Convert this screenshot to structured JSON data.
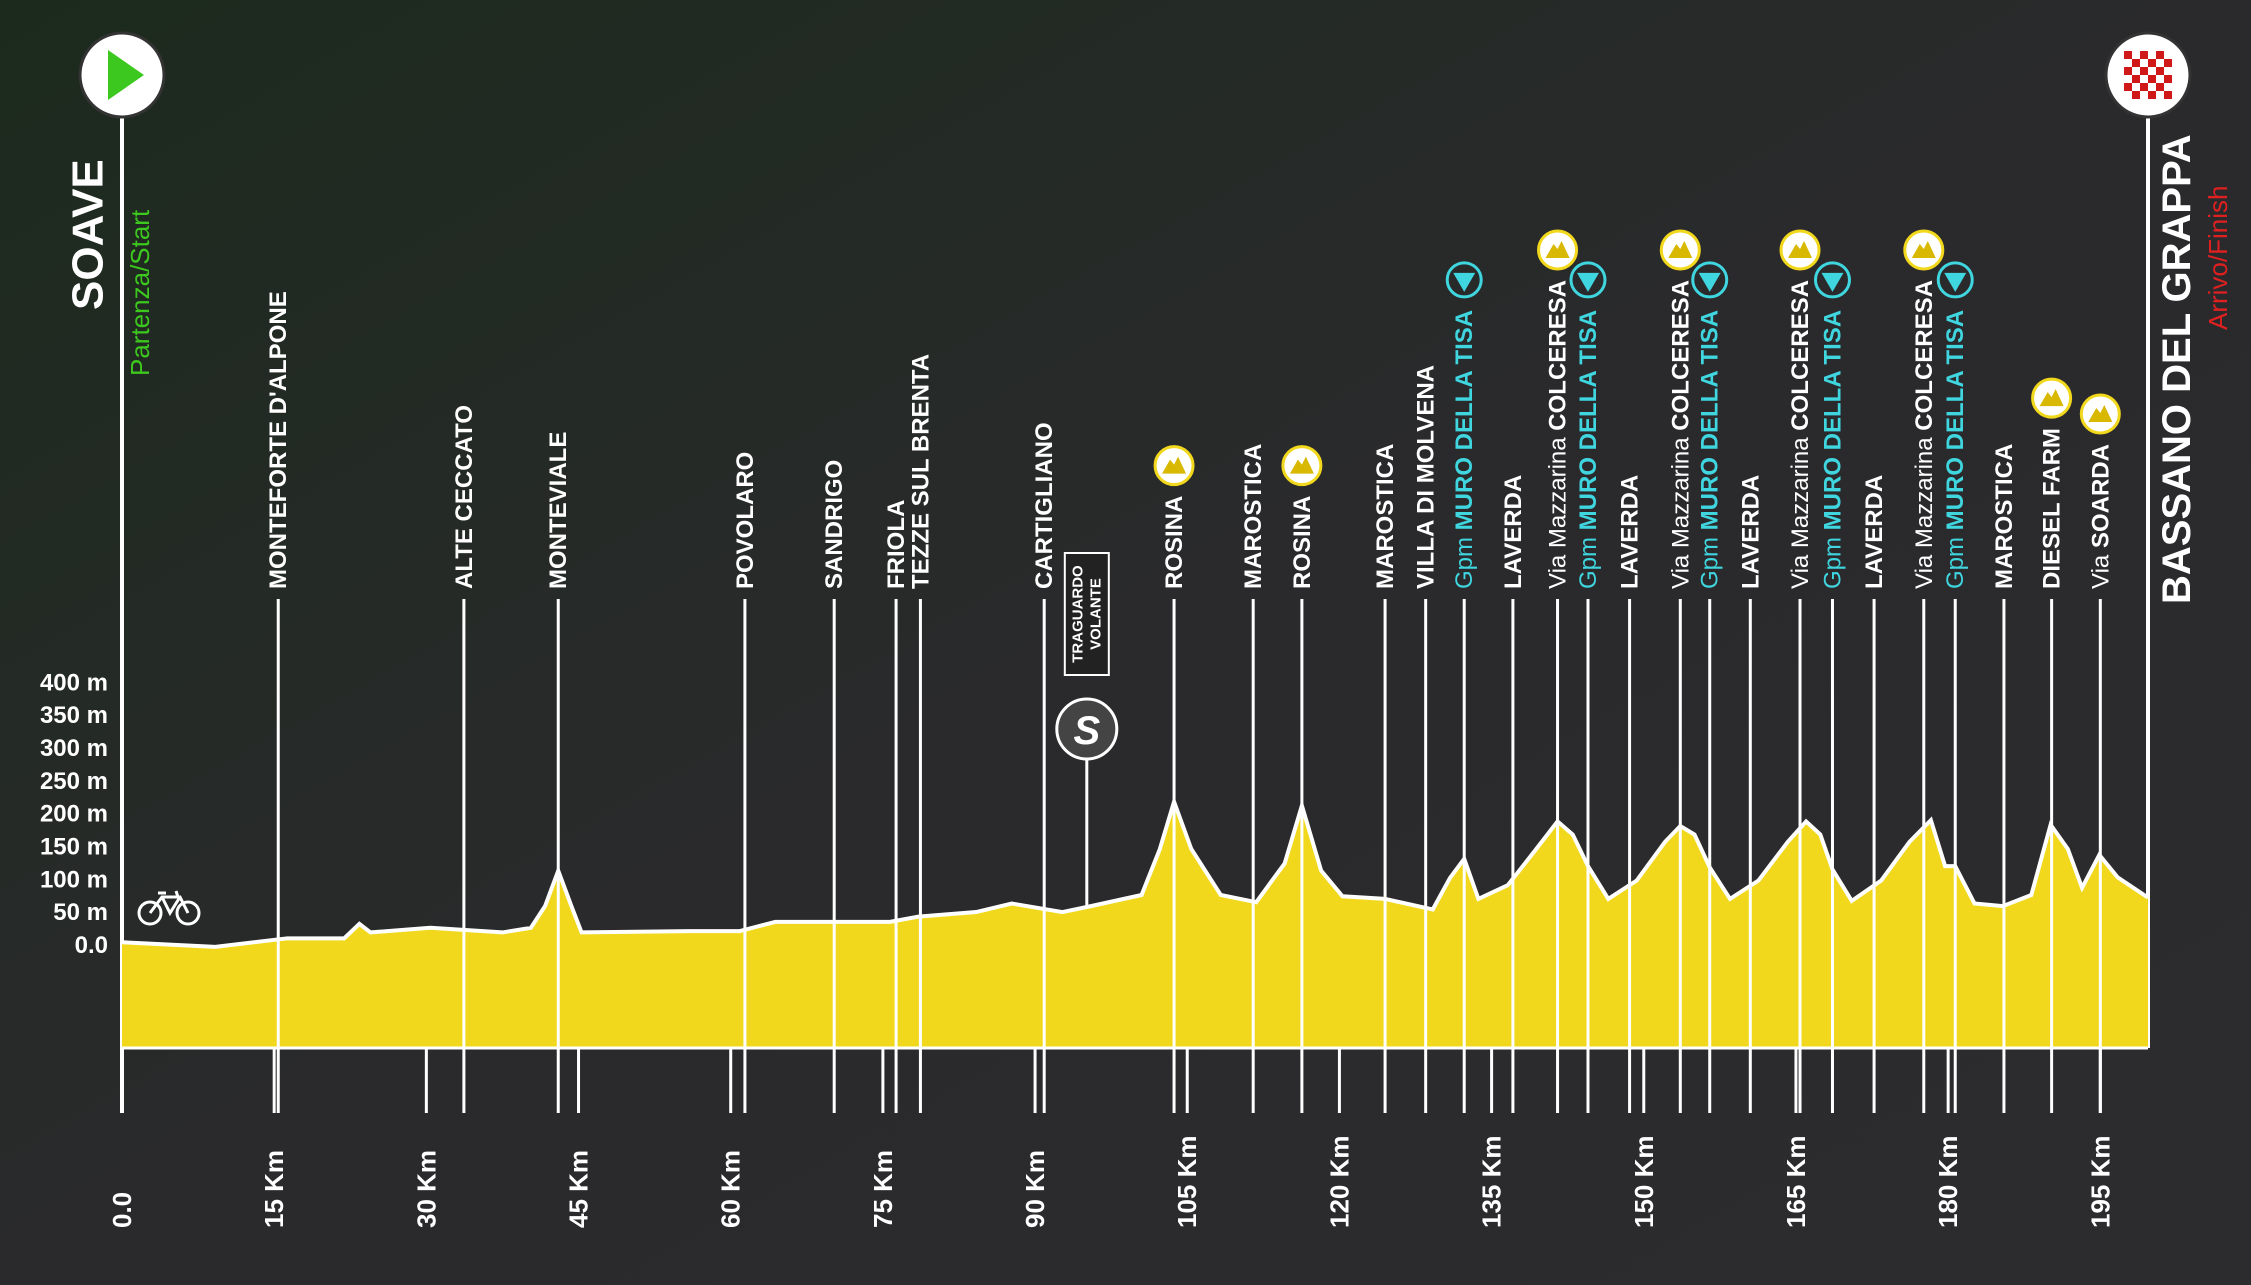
{
  "chart_data": {
    "type": "elevation-profile",
    "start": {
      "name": "SOAVE",
      "label": "Partenza/Start"
    },
    "finish": {
      "name": "BASSANO DEL GRAPPA",
      "label": "Arrivo/Finish"
    },
    "x": [
      0,
      9.2,
      16.3,
      21.9,
      23.4,
      24.5,
      30.4,
      37.5,
      40.3,
      41.7,
      43.0,
      44.3,
      45.3,
      55.9,
      60.9,
      64.4,
      75.7,
      78.5,
      84.2,
      87.7,
      92.7,
      95.5,
      100.5,
      102.3,
      103.7,
      105.4,
      108.3,
      111.8,
      114.6,
      116.3,
      118.2,
      120.3,
      124.5,
      129.2,
      130.9,
      132.3,
      133.7,
      136.6,
      139.4,
      141.5,
      143.0,
      144.5,
      146.5,
      149.3,
      152.1,
      153.6,
      155.0,
      156.5,
      158.5,
      161.3,
      164.2,
      166.0,
      167.4,
      168.6,
      170.5,
      173.4,
      176.2,
      178.3,
      179.7,
      180.7,
      182.6,
      185.4,
      188.2,
      190.1,
      191.8,
      193.2,
      194.9,
      196.7,
      199.7
    ],
    "values": [
      11,
      4,
      17,
      17,
      39,
      26,
      33,
      26,
      33,
      66,
      120,
      66,
      26,
      28,
      28,
      42,
      42,
      50,
      57,
      70,
      57,
      66,
      83,
      153,
      225,
      153,
      83,
      72,
      131,
      219,
      120,
      81,
      77,
      61,
      109,
      138,
      77,
      98,
      153,
      195,
      175,
      127,
      77,
      105,
      164,
      188,
      175,
      125,
      77,
      105,
      164,
      195,
      175,
      122,
      74,
      105,
      164,
      197,
      127,
      127,
      70,
      66,
      83,
      190,
      153,
      94,
      144,
      110,
      79
    ],
    "color": "#f2d81c",
    "xlim": [
      0,
      199.7
    ],
    "ylim": [
      -150,
      400
    ],
    "xticks": [
      {
        "value": 0,
        "label": "0.0"
      },
      {
        "value": 15,
        "label": "15 Km"
      },
      {
        "value": 30,
        "label": "30 Km"
      },
      {
        "value": 45,
        "label": "45 Km"
      },
      {
        "value": 60,
        "label": "60 Km"
      },
      {
        "value": 75,
        "label": "75 Km"
      },
      {
        "value": 90,
        "label": "90 Km"
      },
      {
        "value": 105,
        "label": "105 Km"
      },
      {
        "value": 120,
        "label": "120 Km"
      },
      {
        "value": 135,
        "label": "135 Km"
      },
      {
        "value": 150,
        "label": "150 Km"
      },
      {
        "value": 165,
        "label": "165 Km"
      },
      {
        "value": 180,
        "label": "180 Km"
      },
      {
        "value": 195,
        "label": "195 Km"
      }
    ],
    "yticks": [
      {
        "value": 0,
        "label": "0.0"
      },
      {
        "value": 50,
        "label": "50 m"
      },
      {
        "value": 100,
        "label": "100 m"
      },
      {
        "value": 150,
        "label": "150 m"
      },
      {
        "value": 200,
        "label": "200 m"
      },
      {
        "value": 250,
        "label": "250 m"
      },
      {
        "value": 300,
        "label": "300 m"
      },
      {
        "value": 350,
        "label": "350 m"
      },
      {
        "value": 400,
        "label": "400 m"
      }
    ],
    "sprint": {
      "km": 95.1,
      "icon_text": "S",
      "label": [
        "TRAGUARDO",
        "VOLANTE"
      ]
    },
    "places": [
      {
        "km": 15.4,
        "name": "MONTEFORTE D'ALPONE"
      },
      {
        "km": 33.7,
        "name": "ALTE CECCATO"
      },
      {
        "km": 43.0,
        "name": "MONTEVIALE"
      },
      {
        "km": 61.4,
        "name": "POVOLARO"
      },
      {
        "km": 70.2,
        "name": "SANDRIGO"
      },
      {
        "km": 76.3,
        "name": "FRIOLA"
      },
      {
        "km": 78.7,
        "name": "TEZZE SUL BRENTA"
      },
      {
        "km": 90.9,
        "name": "CARTIGLIANO"
      },
      {
        "km": 103.7,
        "name": "ROSINA",
        "icon": "mountain"
      },
      {
        "km": 111.5,
        "name": "MAROSTICA"
      },
      {
        "km": 116.3,
        "name": "ROSINA",
        "icon": "mountain"
      },
      {
        "km": 124.5,
        "name": "MAROSTICA"
      },
      {
        "km": 128.5,
        "name": "VILLA DI MOLVENA"
      },
      {
        "km": 132.3,
        "prefix": "Gpm",
        "name": "MURO DELLA TISA",
        "icon": "gpm",
        "color": "#3fd6e0"
      },
      {
        "km": 137.1,
        "name": "LAVERDA"
      },
      {
        "km": 141.5,
        "prefix": "Via Mazzarina",
        "name": "COLCERESA",
        "icon": "mountain"
      },
      {
        "km": 144.5,
        "prefix": "Gpm",
        "name": "MURO DELLA TISA",
        "icon": "gpm",
        "color": "#3fd6e0"
      },
      {
        "km": 148.6,
        "name": "LAVERDA"
      },
      {
        "km": 153.6,
        "prefix": "Via Mazzarina",
        "name": "COLCERESA",
        "icon": "mountain"
      },
      {
        "km": 156.5,
        "prefix": "Gpm",
        "name": "MURO DELLA TISA",
        "icon": "gpm",
        "color": "#3fd6e0"
      },
      {
        "km": 160.5,
        "name": "LAVERDA"
      },
      {
        "km": 165.4,
        "prefix": "Via Mazzarina",
        "name": "COLCERESA",
        "icon": "mountain"
      },
      {
        "km": 168.6,
        "prefix": "Gpm",
        "name": "MURO DELLA TISA",
        "icon": "gpm",
        "color": "#3fd6e0"
      },
      {
        "km": 172.7,
        "name": "LAVERDA"
      },
      {
        "km": 177.6,
        "prefix": "Via Mazzarina",
        "name": "COLCERESA",
        "icon": "mountain"
      },
      {
        "km": 180.7,
        "prefix": "Gpm",
        "name": "MURO DELLA TISA",
        "icon": "gpm",
        "color": "#3fd6e0"
      },
      {
        "km": 185.5,
        "name": "MAROSTICA"
      },
      {
        "km": 190.2,
        "name": "DIESEL FARM",
        "icon": "mountain"
      },
      {
        "km": 195.0,
        "prefix": "Via",
        "name": "SOARDA",
        "icon": "mountain"
      }
    ]
  }
}
